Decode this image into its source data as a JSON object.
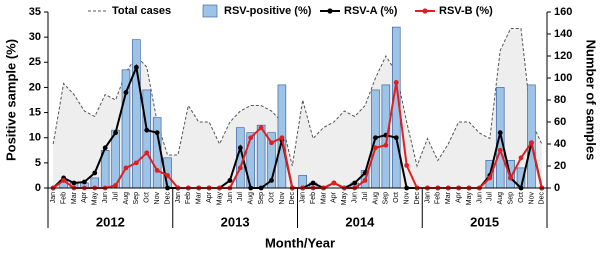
{
  "chart_data": {
    "type": "bar",
    "y_label": "Positive sample (%)",
    "y2_label": "Number of samples",
    "x_label": "Month/Year",
    "categories": [
      "Jan",
      "Feb",
      "Mar",
      "Apr",
      "May",
      "Jun",
      "Jul",
      "Aug",
      "Sep",
      "Oct",
      "Nov",
      "Dec",
      "Jan",
      "Feb",
      "Mar",
      "Apr",
      "May",
      "Jun",
      "Jul",
      "Aug",
      "Sep",
      "Oct",
      "Nov",
      "Dec",
      "Jan",
      "Feb",
      "Mar",
      "Apr",
      "May",
      "Jun",
      "Jul",
      "Aug",
      "Sep",
      "Oct",
      "Nov",
      "Dec",
      "Jan",
      "Feb",
      "Mar",
      "Apr",
      "May",
      "Jun",
      "Jul",
      "Aug",
      "Sep",
      "Oct",
      "Nov",
      "Dec"
    ],
    "years": [
      "2012",
      "2013",
      "2014",
      "2015"
    ],
    "ylim": [
      0,
      35
    ],
    "yticks": [
      0,
      5,
      10,
      15,
      20,
      25,
      30,
      35
    ],
    "y2lim": [
      0,
      160
    ],
    "y2ticks": [
      0,
      20,
      40,
      60,
      80,
      100,
      120,
      140,
      160
    ],
    "series": [
      {
        "name": "Total cases",
        "type": "area",
        "axis": "y2",
        "color": "#555555",
        "values": [
          40,
          95,
          85,
          70,
          65,
          85,
          80,
          105,
          120,
          110,
          60,
          30,
          30,
          75,
          60,
          60,
          40,
          60,
          70,
          75,
          75,
          70,
          60,
          20,
          80,
          45,
          55,
          60,
          70,
          65,
          75,
          100,
          120,
          105,
          60,
          20,
          45,
          25,
          40,
          60,
          60,
          50,
          45,
          125,
          145,
          145,
          60,
          40
        ]
      },
      {
        "name": "RSV-positive (%)",
        "type": "bar",
        "color": "#9dc3e6",
        "values": [
          0,
          1.5,
          1,
          1,
          2,
          7.5,
          11.5,
          23.5,
          29.5,
          19.5,
          14,
          6,
          0,
          0,
          0,
          0,
          0,
          0,
          12,
          11,
          12.5,
          11,
          20.5,
          0,
          2.5,
          1,
          0,
          0,
          0,
          1,
          3.5,
          19.5,
          20.5,
          32,
          0,
          0,
          0,
          0,
          0,
          0,
          0,
          0,
          5.5,
          20,
          5.5,
          4,
          20.5,
          0
        ]
      },
      {
        "name": "RSV-A (%)",
        "type": "line",
        "color": "#000000",
        "values": [
          0,
          2,
          1,
          1.2,
          3,
          8,
          11,
          19,
          24,
          11.5,
          11,
          0,
          0,
          0,
          0,
          0,
          0,
          1.5,
          8,
          0,
          0,
          1.5,
          9.5,
          0,
          0,
          1,
          0,
          1,
          0,
          1,
          3,
          10,
          10.5,
          10,
          0,
          0,
          0,
          0,
          0,
          0,
          0,
          0,
          2.5,
          11,
          2,
          0,
          9,
          0
        ]
      },
      {
        "name": "RSV-B (%)",
        "type": "line",
        "color": "#e02020",
        "values": [
          0,
          1.5,
          0,
          0,
          0,
          0,
          0.5,
          4,
          5,
          7,
          3.5,
          2.5,
          0,
          0,
          0,
          0,
          0,
          0,
          4,
          10,
          12,
          9,
          10,
          0,
          0,
          0,
          0,
          1,
          0,
          0,
          1.5,
          8,
          8.5,
          21,
          4.5,
          0,
          0,
          0,
          0,
          0,
          0,
          0,
          2,
          7.5,
          2,
          6,
          9,
          0
        ]
      }
    ]
  }
}
